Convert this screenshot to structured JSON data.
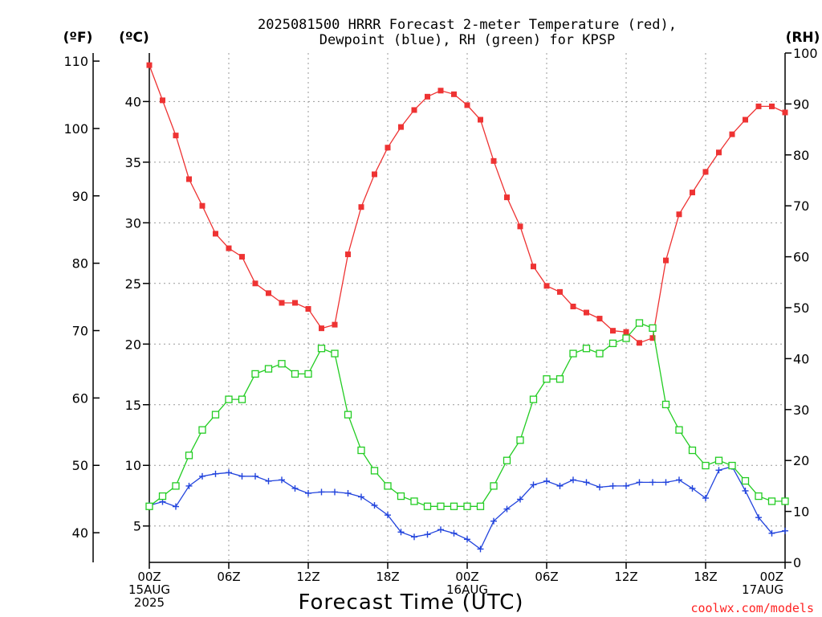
{
  "title_line1": "2025081500 HRRR Forecast 2-meter Temperature (red),",
  "title_line2": "Dewpoint (blue), RH (green) for KPSP",
  "unit_f": "(ºF)",
  "unit_c": "(ºC)",
  "unit_rh": "(RH)",
  "credit": "coolwx.com/models",
  "colors": {
    "temperature": "#ee3333",
    "dewpoint": "#2244dd",
    "rh": "#22cc22",
    "credit": "#ff2222"
  },
  "chart_data": {
    "type": "line",
    "title": "2025081500 HRRR Forecast 2-meter Temperature (red), Dewpoint (blue), RH (green) for KPSP",
    "xlabel": "Forecast Time (UTC)",
    "x_hours": [
      0,
      1,
      2,
      3,
      4,
      5,
      6,
      7,
      8,
      9,
      10,
      11,
      12,
      13,
      14,
      15,
      16,
      17,
      18,
      19,
      20,
      21,
      22,
      23,
      24,
      25,
      26,
      27,
      28,
      29,
      30,
      31,
      32,
      33,
      34,
      35,
      36,
      37,
      38,
      39,
      40,
      41,
      42,
      43,
      44,
      45,
      46,
      47,
      48
    ],
    "x_tick_hours": [
      0,
      6,
      12,
      18,
      24,
      30,
      36,
      42,
      48
    ],
    "x_tick_labels": [
      [
        "00Z",
        "15AUG",
        "2025"
      ],
      [
        "06Z"
      ],
      [
        "12Z"
      ],
      [
        "18Z"
      ],
      [
        "00Z",
        "16AUG"
      ],
      [
        "06Z"
      ],
      [
        "12Z"
      ],
      [
        "18Z"
      ],
      [
        "00Z",
        "17AUG"
      ]
    ],
    "y_left_celsius": {
      "range": [
        2,
        44
      ],
      "ticks": [
        5,
        10,
        15,
        20,
        25,
        30,
        35,
        40
      ]
    },
    "y_left_fahrenheit": {
      "ticks": [
        40,
        50,
        60,
        70,
        80,
        90,
        100,
        110
      ]
    },
    "y_right_rh": {
      "range": [
        0,
        100
      ],
      "ticks": [
        0,
        10,
        20,
        30,
        40,
        50,
        60,
        70,
        80,
        90,
        100
      ]
    },
    "grid": true,
    "series": [
      {
        "name": "Temperature",
        "axis": "celsius",
        "marker": "filled-square",
        "values": [
          43.0,
          40.1,
          37.2,
          33.6,
          31.4,
          29.1,
          27.9,
          27.2,
          25.0,
          24.2,
          23.4,
          23.4,
          22.9,
          21.3,
          21.6,
          27.4,
          31.3,
          34.0,
          36.2,
          37.9,
          39.3,
          40.4,
          40.9,
          40.6,
          39.7,
          38.5,
          35.1,
          32.1,
          29.7,
          26.4,
          24.8,
          24.3,
          23.1,
          22.6,
          22.1,
          21.1,
          21.0,
          20.1,
          20.5,
          26.9,
          30.7,
          32.5,
          34.2,
          35.8,
          37.3,
          38.5,
          39.6,
          39.6,
          39.1
        ]
      },
      {
        "name": "Dewpoint",
        "axis": "celsius",
        "marker": "plus",
        "values": [
          6.7,
          7.0,
          6.6,
          8.3,
          9.1,
          9.3,
          9.4,
          9.1,
          9.1,
          8.7,
          8.8,
          8.1,
          7.7,
          7.8,
          7.8,
          7.7,
          7.4,
          6.7,
          5.9,
          4.5,
          4.1,
          4.3,
          4.7,
          4.4,
          3.9,
          3.1,
          5.4,
          6.4,
          7.2,
          8.4,
          8.7,
          8.3,
          8.8,
          8.6,
          8.2,
          8.3,
          8.3,
          8.6,
          8.6,
          8.6,
          8.8,
          8.1,
          7.3,
          9.6,
          9.9,
          7.9,
          5.7,
          4.4,
          4.6
        ]
      },
      {
        "name": "RH",
        "axis": "rh",
        "marker": "open-square",
        "values": [
          11,
          13,
          15,
          21,
          26,
          29,
          32,
          32,
          37,
          38,
          39,
          37,
          37,
          42,
          41,
          29,
          22,
          18,
          15,
          13,
          12,
          11,
          11,
          11,
          11,
          11,
          15,
          20,
          24,
          32,
          36,
          36,
          41,
          42,
          41,
          43,
          44,
          47,
          46,
          31,
          26,
          22,
          19,
          20,
          19,
          16,
          13,
          12,
          12
        ]
      }
    ]
  }
}
